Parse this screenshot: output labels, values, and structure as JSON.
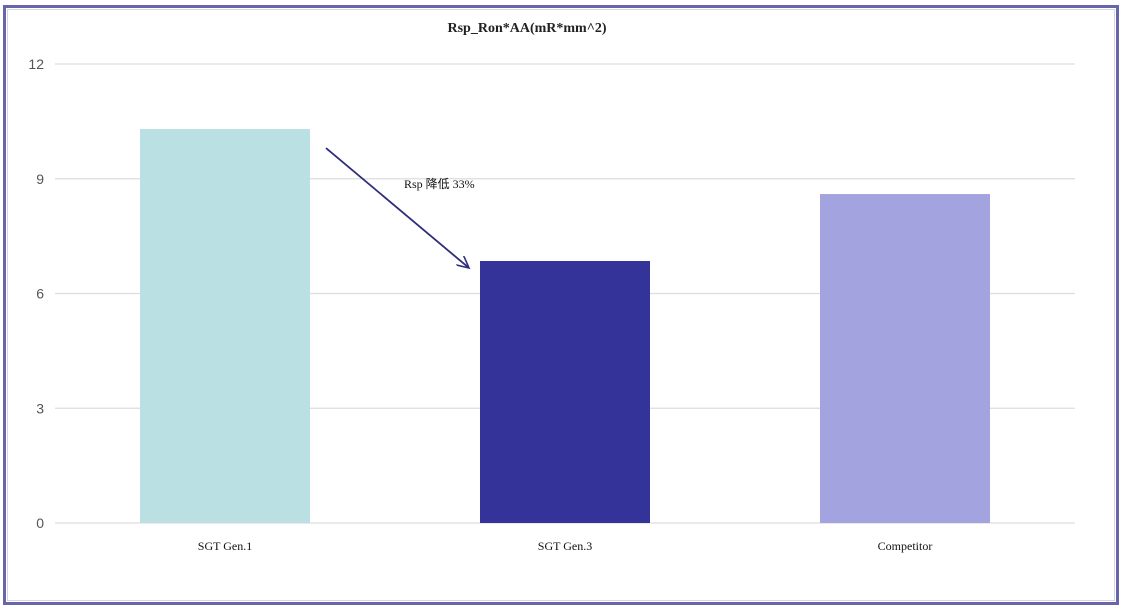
{
  "chart_data": {
    "type": "bar",
    "title": "Rsp_Ron*AA(mR*mm^2)",
    "xlabel": "",
    "ylabel": "",
    "categories": [
      "SGT Gen.1",
      "SGT Gen.3",
      "Competitor"
    ],
    "values": [
      10.3,
      6.85,
      8.6
    ],
    "colors": [
      "#bae0e3",
      "#343399",
      "#a3a3df"
    ],
    "ylim": [
      0,
      12
    ],
    "yticks": [
      "0",
      "3",
      "6",
      "9",
      "12"
    ],
    "grid": true,
    "legend": "none",
    "annotation": {
      "text": "Rsp 降低 33%",
      "from_category": "SGT Gen.1",
      "to_category": "SGT Gen.3"
    }
  },
  "colors": {
    "frame": "#6666a8",
    "grid": "#dddddd",
    "arrow": "#2e2e7a"
  }
}
